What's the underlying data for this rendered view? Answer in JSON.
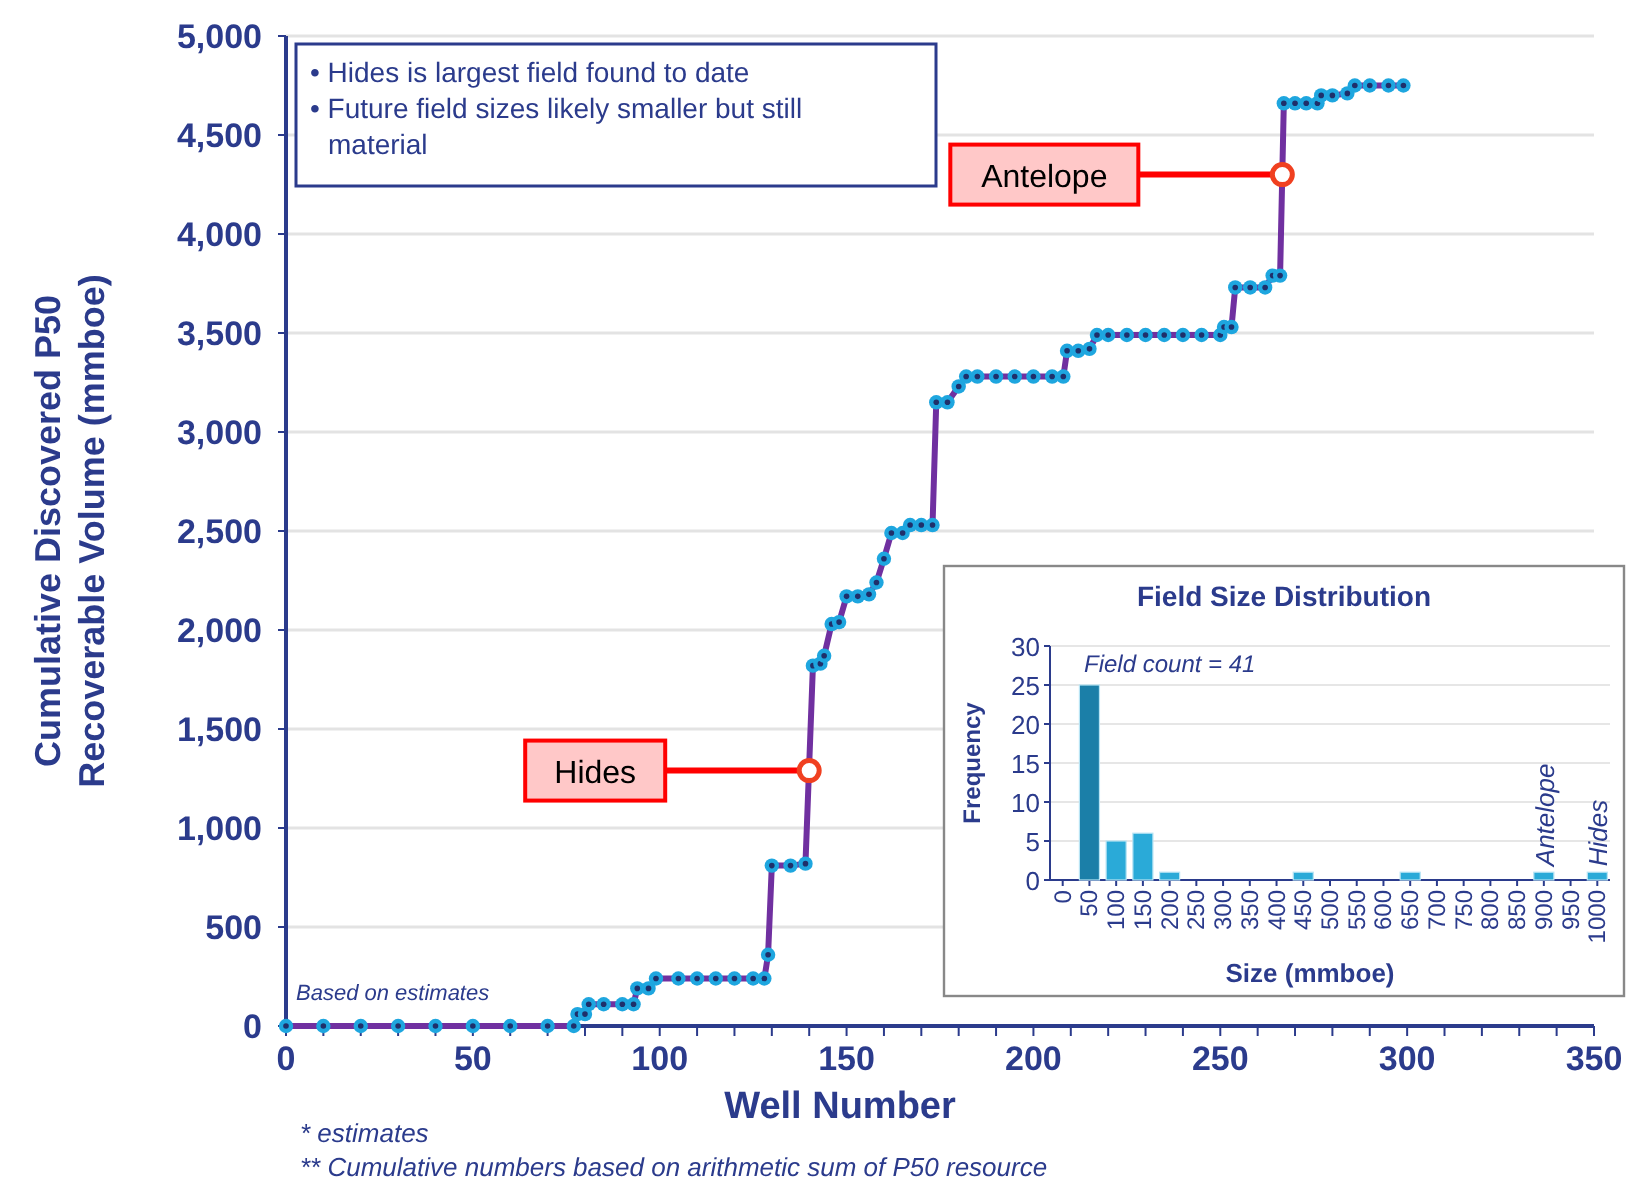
{
  "chart_data": [
    {
      "type": "line",
      "xlabel": "Well Number",
      "ylabel": "Cumulative Discovered P50\nRecoverable  Volume (mmboe)",
      "xlim": [
        0,
        350
      ],
      "ylim": [
        0,
        5000
      ],
      "xticks": [
        0,
        {
          "value": 10,
          "label": null
        },
        {
          "value": 20,
          "label": null
        },
        {
          "value": 30,
          "label": null
        },
        {
          "value": 40,
          "label": null
        },
        50,
        {
          "value": 60,
          "label": null
        },
        {
          "value": 70,
          "label": null
        },
        {
          "value": 80,
          "label": null
        },
        {
          "value": 90,
          "label": null
        },
        100,
        {
          "value": 110,
          "label": null
        },
        {
          "value": 120,
          "label": null
        },
        {
          "value": 130,
          "label": null
        },
        {
          "value": 140,
          "label": null
        },
        150,
        {
          "value": 160,
          "label": null
        },
        {
          "value": 170,
          "label": null
        },
        {
          "value": 180,
          "label": null
        },
        {
          "value": 190,
          "label": null
        },
        200,
        {
          "value": 210,
          "label": null
        },
        {
          "value": 220,
          "label": null
        },
        {
          "value": 230,
          "label": null
        },
        {
          "value": 240,
          "label": null
        },
        250,
        {
          "value": 260,
          "label": null
        },
        {
          "value": 270,
          "label": null
        },
        {
          "value": 280,
          "label": null
        },
        {
          "value": 290,
          "label": null
        },
        300,
        {
          "value": 310,
          "label": null
        },
        {
          "value": 320,
          "label": null
        },
        {
          "value": 330,
          "label": null
        },
        {
          "value": 340,
          "label": null
        },
        350
      ],
      "yticks": [
        0,
        500,
        {
          "value": 1000,
          "label": "1,000"
        },
        {
          "value": 1500,
          "label": "1,500"
        },
        {
          "value": 2000,
          "label": "2,000"
        },
        {
          "value": 2500,
          "label": "2,500"
        },
        {
          "value": 3000,
          "label": "3,000"
        },
        {
          "value": 3500,
          "label": "3,500"
        },
        {
          "value": 4000,
          "label": "4,000"
        },
        {
          "value": 4500,
          "label": "4,500"
        },
        {
          "value": 5000,
          "label": "5,000"
        }
      ],
      "grid": "y",
      "marker": "circle",
      "line_style": "solid",
      "series": [
        {
          "color": "#7030a0",
          "x": [
            0,
            10,
            20,
            30,
            40,
            50,
            60,
            70,
            77,
            78,
            80,
            81,
            85,
            90,
            93,
            94,
            97,
            99,
            105,
            110,
            115,
            120,
            125,
            128,
            129,
            130,
            135,
            139,
            141,
            143,
            144,
            146,
            148,
            150,
            153,
            156,
            158,
            160,
            162,
            165,
            167,
            170,
            173,
            174,
            177,
            180,
            182,
            185,
            190,
            195,
            200,
            205,
            208,
            209,
            212,
            215,
            217,
            220,
            225,
            230,
            235,
            240,
            245,
            250,
            251,
            253,
            254,
            258,
            262,
            264,
            266,
            267,
            270,
            273,
            276,
            277,
            280,
            284,
            286,
            290,
            295,
            299
          ],
          "values": [
            0,
            0,
            0,
            0,
            0,
            0,
            0,
            0,
            0,
            60,
            60,
            110,
            110,
            110,
            110,
            190,
            190,
            240,
            240,
            240,
            240,
            240,
            240,
            240,
            360,
            810,
            810,
            820,
            1820,
            1830,
            1870,
            2030,
            2040,
            2170,
            2170,
            2180,
            2240,
            2360,
            2490,
            2490,
            2530,
            2530,
            2530,
            3150,
            3150,
            3230,
            3280,
            3280,
            3280,
            3280,
            3280,
            3280,
            3280,
            3410,
            3410,
            3420,
            3490,
            3490,
            3490,
            3490,
            3490,
            3490,
            3490,
            3490,
            3530,
            3530,
            3730,
            3730,
            3730,
            3790,
            3790,
            4660,
            4660,
            4660,
            4660,
            4700,
            4700,
            4710,
            4750,
            4750,
            4750,
            4750
          ]
        }
      ],
      "annotations": [
        "• Hides is largest field found to date",
        "• Future field sizes likely smaller but still material",
        "Based on estimates",
        "*  estimates",
        "** Cumulative numbers based on arithmetic sum of P50 resource",
        {
          "text": "Hides",
          "x": 140,
          "y": 1290
        },
        {
          "text": "Antelope",
          "x": 266.6,
          "y": 4300
        }
      ]
    },
    {
      "type": "bar",
      "title": "Field Size Distribution",
      "xlabel": "Size (mmboe)",
      "ylabel": "Frequency",
      "categories": [
        "0",
        "50",
        "100",
        "150",
        "200",
        "250",
        "300",
        "350",
        "400",
        "450",
        "500",
        "550",
        "600",
        "650",
        "700",
        "750",
        "800",
        "850",
        "900",
        "950",
        "1000"
      ],
      "values": [
        0,
        25,
        5,
        6,
        1,
        0,
        0,
        0,
        0,
        1,
        0,
        0,
        0,
        1,
        0,
        0,
        0,
        0,
        1,
        0,
        1
      ],
      "colors": [
        "#2aaad8",
        "#1b7fa8",
        "#2aaad8",
        "#2aaad8",
        "#2aaad8",
        "#2aaad8",
        "#2aaad8",
        "#2aaad8",
        "#2aaad8",
        "#2aaad8",
        "#2aaad8",
        "#2aaad8",
        "#2aaad8",
        "#2aaad8",
        "#2aaad8",
        "#2aaad8",
        "#2aaad8",
        "#2aaad8",
        "#2aaad8",
        "#2aaad8",
        "#2aaad8"
      ],
      "ylim": [
        0,
        30
      ],
      "yticks": [
        0,
        5,
        10,
        15,
        20,
        25,
        30
      ],
      "grid": "y",
      "annotations": [
        "Field count = 41",
        "Antelope",
        "Hides"
      ]
    }
  ]
}
